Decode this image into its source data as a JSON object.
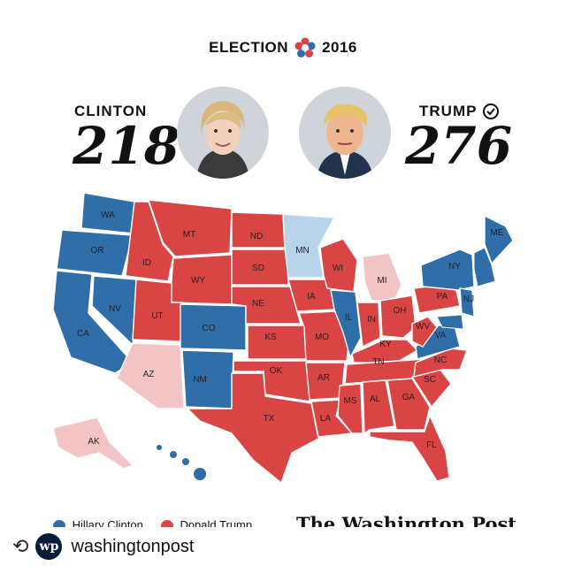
{
  "header": {
    "left": "ELECTION",
    "right": "2016",
    "icon": "star-emblem-icon"
  },
  "clinton": {
    "name": "CLINTON",
    "votes": "218"
  },
  "trump": {
    "name": "TRUMP",
    "votes": "276",
    "icon": "checkmark-circle-icon"
  },
  "colors": {
    "dem": "#2f6ea8",
    "rep": "#d94545",
    "dem_light": "#b8d4e8",
    "rep_light": "#f2c4c6"
  },
  "legend": {
    "dem_label": "Hillary Clinton",
    "rep_label": "Donald Trump"
  },
  "brand": "The Washington Post",
  "account": {
    "avatar_text": "wp",
    "name": "washingtonpost",
    "icon": "repost-icon"
  },
  "chart_data": {
    "type": "map",
    "states": [
      {
        "label": "WA",
        "winner": "dem"
      },
      {
        "label": "OR",
        "winner": "dem"
      },
      {
        "label": "CA",
        "winner": "dem"
      },
      {
        "label": "NV",
        "winner": "dem"
      },
      {
        "label": "ID",
        "winner": "rep"
      },
      {
        "label": "MT",
        "winner": "rep"
      },
      {
        "label": "WY",
        "winner": "rep"
      },
      {
        "label": "UT",
        "winner": "rep"
      },
      {
        "label": "AZ",
        "winner": "rep_light"
      },
      {
        "label": "CO",
        "winner": "dem"
      },
      {
        "label": "NM",
        "winner": "dem"
      },
      {
        "label": "ND",
        "winner": "rep"
      },
      {
        "label": "SD",
        "winner": "rep"
      },
      {
        "label": "NE",
        "winner": "rep"
      },
      {
        "label": "KS",
        "winner": "rep"
      },
      {
        "label": "OK",
        "winner": "rep"
      },
      {
        "label": "TX",
        "winner": "rep"
      },
      {
        "label": "MN",
        "winner": "dem_light"
      },
      {
        "label": "IA",
        "winner": "rep"
      },
      {
        "label": "MO",
        "winner": "rep"
      },
      {
        "label": "AR",
        "winner": "rep"
      },
      {
        "label": "LA",
        "winner": "rep"
      },
      {
        "label": "WI",
        "winner": "rep"
      },
      {
        "label": "IL",
        "winner": "dem"
      },
      {
        "label": "MI",
        "winner": "rep_light"
      },
      {
        "label": "IN",
        "winner": "rep"
      },
      {
        "label": "OH",
        "winner": "rep"
      },
      {
        "label": "KY",
        "winner": "rep"
      },
      {
        "label": "TN",
        "winner": "rep"
      },
      {
        "label": "MS",
        "winner": "rep"
      },
      {
        "label": "AL",
        "winner": "rep"
      },
      {
        "label": "GA",
        "winner": "rep"
      },
      {
        "label": "FL",
        "winner": "rep"
      },
      {
        "label": "SC",
        "winner": "rep"
      },
      {
        "label": "NC",
        "winner": "rep"
      },
      {
        "label": "VA",
        "winner": "dem"
      },
      {
        "label": "WV",
        "winner": "rep"
      },
      {
        "label": "PA",
        "winner": "rep"
      },
      {
        "label": "NY",
        "winner": "dem"
      },
      {
        "label": "NJ",
        "winner": "dem"
      },
      {
        "label": "ME",
        "winner": "dem"
      },
      {
        "label": "AK",
        "winner": "rep_light"
      }
    ]
  }
}
